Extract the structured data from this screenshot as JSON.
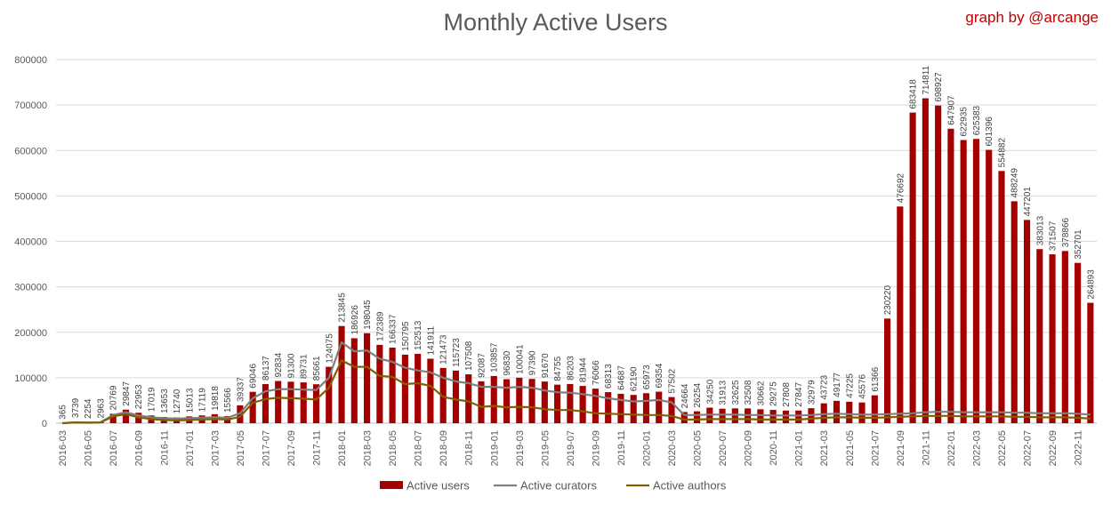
{
  "title": "Monthly Active Users",
  "credit": "graph by @arcange",
  "chart_data": {
    "type": "bar",
    "ylim": [
      0,
      800000
    ],
    "yticks": [
      0,
      100000,
      200000,
      300000,
      400000,
      500000,
      600000,
      700000,
      800000
    ],
    "grid": true,
    "legend_position": "bottom",
    "categories": [
      "2016-03",
      "2016-04",
      "2016-05",
      "2016-06",
      "2016-07",
      "2016-08",
      "2016-09",
      "2016-10",
      "2016-11",
      "2016-12",
      "2017-01",
      "2017-02",
      "2017-03",
      "2017-04",
      "2017-05",
      "2017-06",
      "2017-07",
      "2017-08",
      "2017-09",
      "2017-10",
      "2017-11",
      "2017-12",
      "2018-01",
      "2018-02",
      "2018-03",
      "2018-04",
      "2018-05",
      "2018-06",
      "2018-07",
      "2018-08",
      "2018-09",
      "2018-10",
      "2018-11",
      "2018-12",
      "2019-01",
      "2019-02",
      "2019-03",
      "2019-04",
      "2019-05",
      "2019-06",
      "2019-07",
      "2019-08",
      "2019-09",
      "2019-10",
      "2019-11",
      "2019-12",
      "2020-01",
      "2020-02",
      "2020-03",
      "2020-04",
      "2020-05",
      "2020-06",
      "2020-07",
      "2020-08",
      "2020-09",
      "2020-10",
      "2020-11",
      "2020-12",
      "2021-01",
      "2021-02",
      "2021-03",
      "2021-04",
      "2021-05",
      "2021-06",
      "2021-07",
      "2021-08",
      "2021-09",
      "2021-10",
      "2021-11",
      "2021-12",
      "2022-01",
      "2022-02",
      "2022-03",
      "2022-04",
      "2022-05",
      "2022-06",
      "2022-07",
      "2022-08",
      "2022-09",
      "2022-10",
      "2022-11",
      "2022-12"
    ],
    "series": [
      {
        "name": "Active users",
        "kind": "bar",
        "color": "#a50000",
        "values": [
          365,
          3739,
          2254,
          2963,
          20769,
          29847,
          22953,
          17019,
          13653,
          12740,
          15013,
          17119,
          19818,
          15566,
          39337,
          69046,
          86137,
          92834,
          91300,
          89731,
          85661,
          124075,
          213845,
          186926,
          198045,
          172389,
          166337,
          150795,
          152513,
          141911,
          121473,
          115723,
          107508,
          92087,
          103857,
          96830,
          100041,
          97390,
          91670,
          84755,
          86203,
          81944,
          76066,
          68313,
          64687,
          62190,
          65973,
          69354,
          57502,
          24664,
          26254,
          34250,
          31913,
          32625,
          32508,
          30662,
          29275,
          27808,
          27847,
          32979,
          43723,
          49177,
          47225,
          45576,
          61366,
          230220,
          476692,
          683418,
          714811,
          698927,
          647907,
          622935,
          625383,
          601396,
          554882,
          488249,
          447201,
          383013,
          371507,
          378866,
          352701,
          264893
        ]
      },
      {
        "name": "Active curators",
        "kind": "line",
        "color": "#7f7f7f",
        "values": [
          0,
          2000,
          1500,
          2000,
          18000,
          24000,
          17000,
          13000,
          11000,
          10000,
          11000,
          12000,
          13000,
          12000,
          22000,
          55000,
          70000,
          75000,
          75000,
          74000,
          73000,
          100000,
          178000,
          158000,
          160000,
          142000,
          135000,
          122000,
          116000,
          112000,
          100000,
          92000,
          88000,
          80000,
          80000,
          78000,
          80000,
          78000,
          72000,
          68000,
          67000,
          64000,
          60000,
          55000,
          51000,
          48000,
          49000,
          51000,
          46000,
          18000,
          18000,
          19000,
          19000,
          19000,
          18000,
          18000,
          17000,
          17000,
          17000,
          18000,
          20000,
          21000,
          20000,
          19000,
          19000,
          20000,
          21000,
          22000,
          24000,
          25000,
          25000,
          24000,
          24000,
          24000,
          24000,
          23000,
          23000,
          22000,
          22000,
          22000,
          21000,
          19000
        ]
      },
      {
        "name": "Active authors",
        "kind": "line",
        "color": "#806000",
        "values": [
          0,
          1500,
          1000,
          1500,
          15000,
          20000,
          13000,
          9000,
          7000,
          6000,
          7000,
          8000,
          9000,
          8000,
          14000,
          45000,
          53000,
          56000,
          55000,
          54000,
          52000,
          78000,
          138000,
          124000,
          124000,
          104000,
          102000,
          86000,
          88000,
          82000,
          58000,
          52000,
          48000,
          36000,
          38000,
          35000,
          36000,
          35000,
          31000,
          29000,
          29000,
          26000,
          22000,
          21000,
          20000,
          19000,
          18000,
          18000,
          16000,
          8000,
          8000,
          9000,
          9000,
          9000,
          9000,
          8000,
          8000,
          8000,
          8000,
          10000,
          12000,
          13000,
          13000,
          12000,
          12000,
          13000,
          14000,
          15000,
          16000,
          16000,
          16000,
          15000,
          15000,
          15000,
          15000,
          14000,
          14000,
          13000,
          13000,
          13000,
          12000,
          10000
        ]
      }
    ]
  }
}
